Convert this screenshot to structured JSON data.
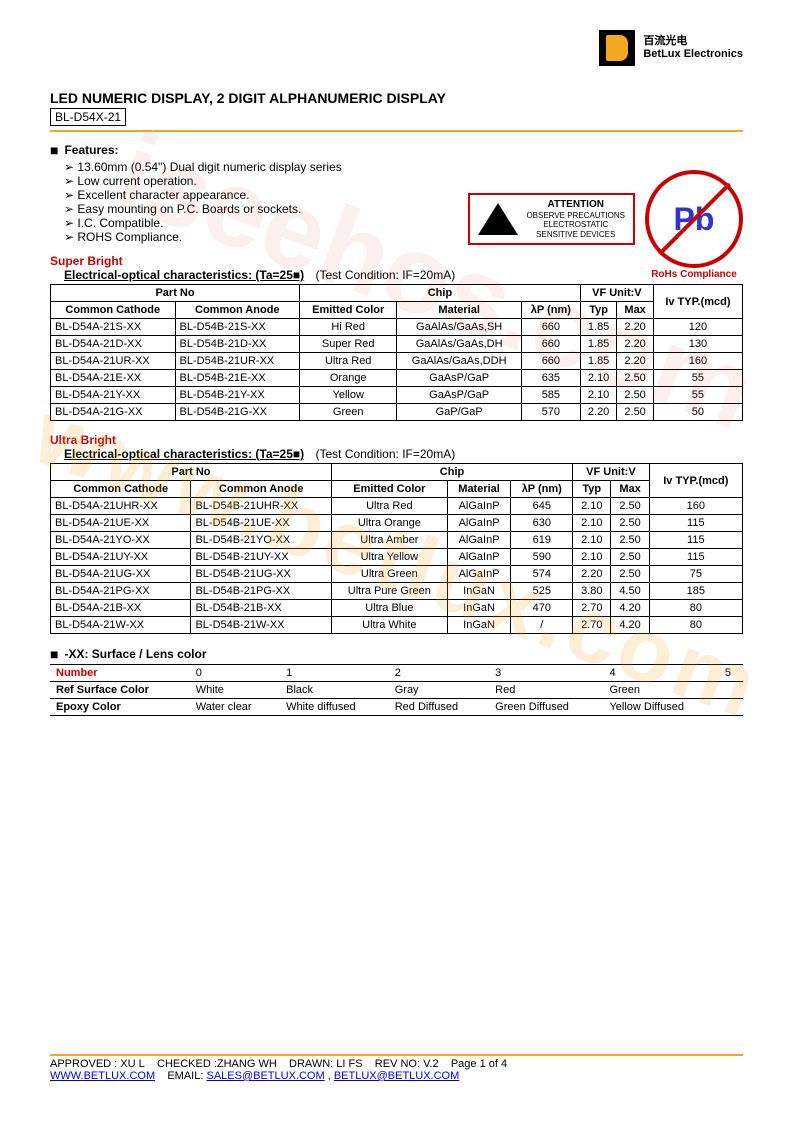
{
  "logo": {
    "cn": "百流光电",
    "en": "BetLux Electronics"
  },
  "title": "LED NUMERIC DISPLAY, 2 DIGIT ALPHANUMERIC DISPLAY",
  "partno_box": "BL-D54X-21",
  "features_label": "Features:",
  "features": [
    "13.60mm (0.54\") Dual digit numeric display series",
    "Low current operation.",
    "Excellent character appearance.",
    "Easy mounting on P.C. Boards or sockets.",
    "I.C. Compatible.",
    "ROHS Compliance."
  ],
  "esd": {
    "title": "ATTENTION",
    "line1": "OBSERVE PRECAUTIONS",
    "line2": "ELECTROSTATIC",
    "line3": "SENSITIVE DEVICES"
  },
  "pb": {
    "symbol": "Pb",
    "label": "RoHs Compliance"
  },
  "table1": {
    "heading": "Super Bright",
    "subhead": "Electrical-optical characteristics: (Ta=25■)",
    "condition": "(Test Condition: IF=20mA)",
    "headers": {
      "partno": "Part No",
      "cathode": "Common Cathode",
      "anode": "Common Anode",
      "chip": "Chip",
      "emitted": "Emitted Color",
      "material": "Material",
      "lp": "λP (nm)",
      "vf": "VF Unit:V",
      "typ": "Typ",
      "max": "Max",
      "iv": "Iv TYP.(mcd)"
    },
    "rows": [
      {
        "cc": "BL-D54A-21S-XX",
        "ca": "BL-D54B-21S-XX",
        "color": "Hi Red",
        "mat": "GaAlAs/GaAs,SH",
        "lp": "660",
        "typ": "1.85",
        "max": "2.20",
        "iv": "120"
      },
      {
        "cc": "BL-D54A-21D-XX",
        "ca": "BL-D54B-21D-XX",
        "color": "Super Red",
        "mat": "GaAlAs/GaAs,DH",
        "lp": "660",
        "typ": "1.85",
        "max": "2.20",
        "iv": "130"
      },
      {
        "cc": "BL-D54A-21UR-XX",
        "ca": "BL-D54B-21UR-XX",
        "color": "Ultra Red",
        "mat": "GaAlAs/GaAs,DDH",
        "lp": "660",
        "typ": "1.85",
        "max": "2.20",
        "iv": "160"
      },
      {
        "cc": "BL-D54A-21E-XX",
        "ca": "BL-D54B-21E-XX",
        "color": "Orange",
        "mat": "GaAsP/GaP",
        "lp": "635",
        "typ": "2.10",
        "max": "2.50",
        "iv": "55"
      },
      {
        "cc": "BL-D54A-21Y-XX",
        "ca": "BL-D54B-21Y-XX",
        "color": "Yellow",
        "mat": "GaAsP/GaP",
        "lp": "585",
        "typ": "2.10",
        "max": "2.50",
        "iv": "55"
      },
      {
        "cc": "BL-D54A-21G-XX",
        "ca": "BL-D54B-21G-XX",
        "color": "Green",
        "mat": "GaP/GaP",
        "lp": "570",
        "typ": "2.20",
        "max": "2.50",
        "iv": "50"
      }
    ]
  },
  "table2": {
    "heading": "Ultra Bright",
    "subhead": "Electrical-optical characteristics: (Ta=25■)",
    "condition": "(Test Condition: IF=20mA)",
    "headers": {
      "partno": "Part No",
      "cathode": "Common Cathode",
      "anode": "Common Anode",
      "chip": "Chip",
      "emitted": "Emitted Color",
      "material": "Material",
      "lp": "λP (nm)",
      "vf": "VF Unit:V",
      "typ": "Typ",
      "max": "Max",
      "iv": "Iv TYP.(mcd)"
    },
    "rows": [
      {
        "cc": "BL-D54A-21UHR-XX",
        "ca": "BL-D54B-21UHR-XX",
        "color": "Ultra Red",
        "mat": "AlGaInP",
        "lp": "645",
        "typ": "2.10",
        "max": "2.50",
        "iv": "160"
      },
      {
        "cc": "BL-D54A-21UE-XX",
        "ca": "BL-D54B-21UE-XX",
        "color": "Ultra Orange",
        "mat": "AlGaInP",
        "lp": "630",
        "typ": "2.10",
        "max": "2.50",
        "iv": "115"
      },
      {
        "cc": "BL-D54A-21YO-XX",
        "ca": "BL-D54B-21YO-XX",
        "color": "Ultra Amber",
        "mat": "AlGaInP",
        "lp": "619",
        "typ": "2.10",
        "max": "2.50",
        "iv": "115"
      },
      {
        "cc": "BL-D54A-21UY-XX",
        "ca": "BL-D54B-21UY-XX",
        "color": "Ultra Yellow",
        "mat": "AlGaInP",
        "lp": "590",
        "typ": "2.10",
        "max": "2.50",
        "iv": "115"
      },
      {
        "cc": "BL-D54A-21UG-XX",
        "ca": "BL-D54B-21UG-XX",
        "color": "Ultra Green",
        "mat": "AlGaInP",
        "lp": "574",
        "typ": "2.20",
        "max": "2.50",
        "iv": "75"
      },
      {
        "cc": "BL-D54A-21PG-XX",
        "ca": "BL-D54B-21PG-XX",
        "color": "Ultra Pure Green",
        "mat": "InGaN",
        "lp": "525",
        "typ": "3.80",
        "max": "4.50",
        "iv": "185"
      },
      {
        "cc": "BL-D54A-21B-XX",
        "ca": "BL-D54B-21B-XX",
        "color": "Ultra Blue",
        "mat": "InGaN",
        "lp": "470",
        "typ": "2.70",
        "max": "4.20",
        "iv": "80"
      },
      {
        "cc": "BL-D54A-21W-XX",
        "ca": "BL-D54B-21W-XX",
        "color": "Ultra White",
        "mat": "InGaN",
        "lp": "/",
        "typ": "2.70",
        "max": "4.20",
        "iv": "80"
      }
    ]
  },
  "lens": {
    "title": "-XX: Surface / Lens color",
    "col_number": "Number",
    "cols": [
      "0",
      "1",
      "2",
      "3",
      "4",
      "5"
    ],
    "row1_label": "Ref Surface Color",
    "row1": [
      "White",
      "Black",
      "Gray",
      "Red",
      "Green",
      ""
    ],
    "row2_label": "Epoxy Color",
    "row2": [
      "Water clear",
      "White diffused",
      "Red Diffused",
      "Green Diffused",
      "Yellow Diffused",
      ""
    ]
  },
  "footer": {
    "approved": "APPROVED : XU L",
    "checked": "CHECKED :ZHANG WH",
    "drawn": "DRAWN: LI FS",
    "rev": "REV NO: V.2",
    "page": "Page 1 of 4",
    "url": "WWW.BETLUX.COM",
    "email_label": "EMAIL:",
    "email1": "SALES@BETLUX.COM",
    "email2": "BETLUX@BETLUX.COM"
  },
  "watermark1": "www.betlux.com",
  "watermark2": "iseehos.com"
}
